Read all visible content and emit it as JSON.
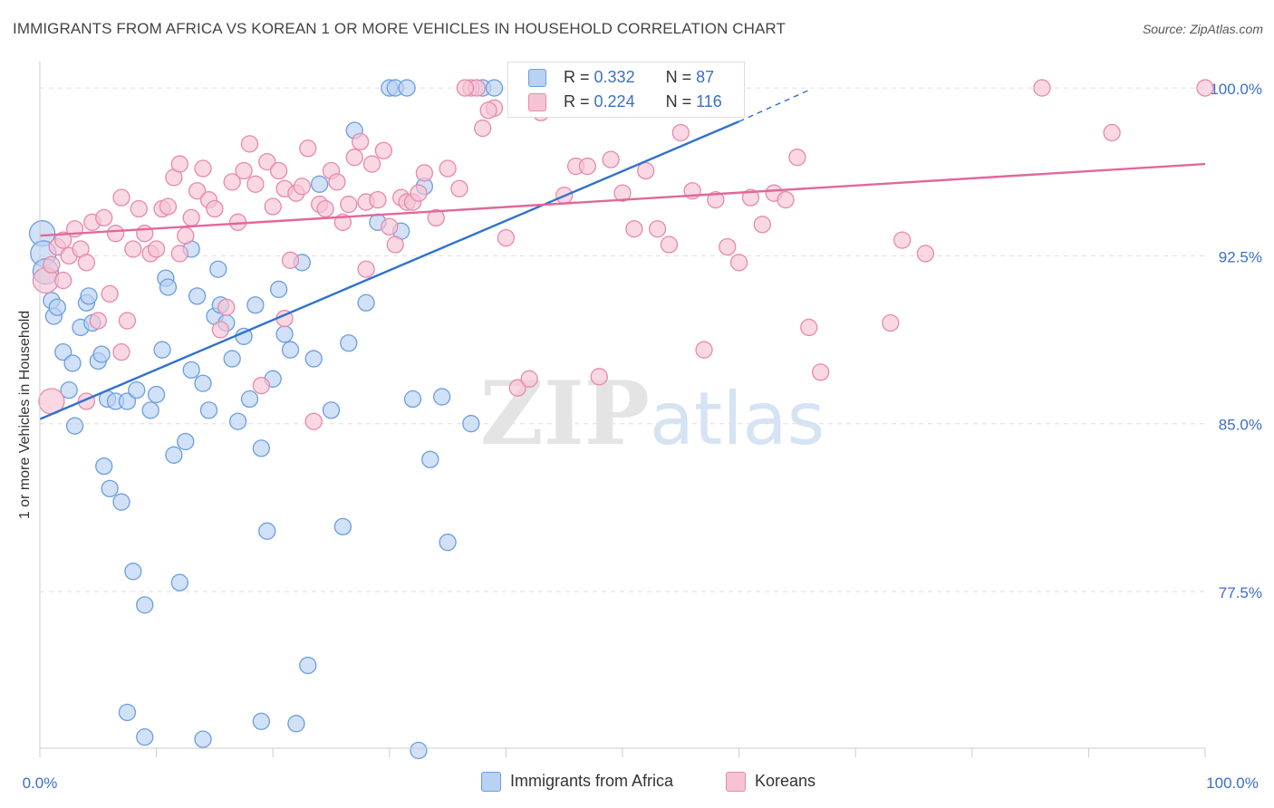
{
  "chart_data": {
    "type": "scatter",
    "title": "IMMIGRANTS FROM AFRICA VS KOREAN 1 OR MORE VEHICLES IN HOUSEHOLD CORRELATION CHART",
    "source": "Source: ZipAtlas.com",
    "ylabel": "1 or more Vehicles in Household",
    "xlim": [
      0,
      100
    ],
    "ylim": [
      70.5,
      101.5
    ],
    "x_tick_labels": [
      "0.0%",
      "100.0%"
    ],
    "y_ticks": [
      {
        "value": 100.0,
        "label": "100.0%"
      },
      {
        "value": 92.5,
        "label": "92.5%"
      },
      {
        "value": 85.0,
        "label": "85.0%"
      },
      {
        "value": 77.5,
        "label": "77.5%"
      }
    ],
    "grid": true,
    "legend": {
      "placement": "top-center",
      "rows": [
        {
          "r_label": "R = ",
          "r_value": "0.332",
          "n_label": "N = ",
          "n_value": "87"
        },
        {
          "r_label": "R = ",
          "r_value": "0.224",
          "n_label": "N = ",
          "n_value": "116"
        }
      ]
    },
    "watermark": "ZIPatlas",
    "series": [
      {
        "name": "Immigrants from Africa",
        "color": "#6b9ee0",
        "fill": "#b9d1f2",
        "trend": {
          "x0": 0,
          "y0": 85.2,
          "x1": 60,
          "y1": 98.5,
          "dashed_to_x": 66,
          "dashed_to_y": 99.9
        },
        "points": [
          [
            0.2,
            93.5
          ],
          [
            0.3,
            92.6
          ],
          [
            0.5,
            91.8
          ],
          [
            1.0,
            90.5
          ],
          [
            1.2,
            89.8
          ],
          [
            1.5,
            90.2
          ],
          [
            2.0,
            88.2
          ],
          [
            2.5,
            86.5
          ],
          [
            2.8,
            87.7
          ],
          [
            3.0,
            84.9
          ],
          [
            3.5,
            89.3
          ],
          [
            4.0,
            90.4
          ],
          [
            4.2,
            90.7
          ],
          [
            4.5,
            89.5
          ],
          [
            5.0,
            87.8
          ],
          [
            5.3,
            88.1
          ],
          [
            5.5,
            83.1
          ],
          [
            5.8,
            86.1
          ],
          [
            6.0,
            82.1
          ],
          [
            6.5,
            86.0
          ],
          [
            7.0,
            81.5
          ],
          [
            7.5,
            86.0
          ],
          [
            8.0,
            78.4
          ],
          [
            8.3,
            86.5
          ],
          [
            9.0,
            76.9
          ],
          [
            9.5,
            85.6
          ],
          [
            10.0,
            86.3
          ],
          [
            10.5,
            88.3
          ],
          [
            10.8,
            91.5
          ],
          [
            11.0,
            91.1
          ],
          [
            11.5,
            83.6
          ],
          [
            12.0,
            77.9
          ],
          [
            12.5,
            84.2
          ],
          [
            13.0,
            87.4
          ],
          [
            13.5,
            90.7
          ],
          [
            14.0,
            86.8
          ],
          [
            14.5,
            85.6
          ],
          [
            15.0,
            89.8
          ],
          [
            15.3,
            91.9
          ],
          [
            15.5,
            90.3
          ],
          [
            16.0,
            89.5
          ],
          [
            16.5,
            87.9
          ],
          [
            17.0,
            85.1
          ],
          [
            17.5,
            88.9
          ],
          [
            18.0,
            86.1
          ],
          [
            18.5,
            90.3
          ],
          [
            19.0,
            83.9
          ],
          [
            19.5,
            80.2
          ],
          [
            20.0,
            87.0
          ],
          [
            20.5,
            91.0
          ],
          [
            21.0,
            89.0
          ],
          [
            21.5,
            88.3
          ],
          [
            22.0,
            71.6
          ],
          [
            22.5,
            92.2
          ],
          [
            23.0,
            74.2
          ],
          [
            23.5,
            87.9
          ],
          [
            24.0,
            95.7
          ],
          [
            25.0,
            85.6
          ],
          [
            26.0,
            80.4
          ],
          [
            26.5,
            88.6
          ],
          [
            27.0,
            98.1
          ],
          [
            28.0,
            90.4
          ],
          [
            29.0,
            94.0
          ],
          [
            30.0,
            100.0
          ],
          [
            30.5,
            100.0
          ],
          [
            31.0,
            93.6
          ],
          [
            31.5,
            100.0
          ],
          [
            32.0,
            86.1
          ],
          [
            32.5,
            70.4
          ],
          [
            33.0,
            95.6
          ],
          [
            33.5,
            83.4
          ],
          [
            34.5,
            86.2
          ],
          [
            35.0,
            79.7
          ],
          [
            37.0,
            85.0
          ],
          [
            38.0,
            100.0
          ],
          [
            39.0,
            100.0
          ],
          [
            42.0,
            100.0
          ],
          [
            43.0,
            100.0
          ],
          [
            44.0,
            100.0
          ],
          [
            45.0,
            100.0
          ],
          [
            47.0,
            100.0
          ],
          [
            48.0,
            100.0
          ],
          [
            9.0,
            71.0
          ],
          [
            14.0,
            70.9
          ],
          [
            7.5,
            72.1
          ],
          [
            19.0,
            71.7
          ],
          [
            13.0,
            92.8
          ]
        ]
      },
      {
        "name": "Koreans",
        "color": "#e889a8",
        "fill": "#f6c3d4",
        "trend": {
          "x0": 0,
          "y0": 93.4,
          "x1": 100,
          "y1": 96.6
        },
        "points": [
          [
            0.5,
            91.4
          ],
          [
            1.0,
            86.0
          ],
          [
            1.5,
            92.9
          ],
          [
            2.0,
            93.2
          ],
          [
            2.5,
            92.5
          ],
          [
            3.0,
            93.7
          ],
          [
            3.5,
            92.8
          ],
          [
            4.0,
            92.2
          ],
          [
            4.5,
            94.0
          ],
          [
            5.0,
            89.6
          ],
          [
            5.5,
            94.2
          ],
          [
            6.0,
            90.8
          ],
          [
            6.5,
            93.5
          ],
          [
            7.0,
            95.1
          ],
          [
            7.5,
            89.6
          ],
          [
            8.0,
            92.8
          ],
          [
            8.5,
            94.6
          ],
          [
            9.0,
            93.5
          ],
          [
            9.5,
            92.6
          ],
          [
            10.0,
            92.8
          ],
          [
            10.5,
            94.6
          ],
          [
            11.0,
            94.7
          ],
          [
            11.5,
            96.0
          ],
          [
            12.0,
            96.6
          ],
          [
            12.5,
            93.4
          ],
          [
            13.0,
            94.2
          ],
          [
            13.5,
            95.4
          ],
          [
            14.0,
            96.4
          ],
          [
            14.5,
            95.0
          ],
          [
            15.0,
            94.6
          ],
          [
            15.5,
            89.2
          ],
          [
            16.0,
            90.2
          ],
          [
            16.5,
            95.8
          ],
          [
            17.0,
            94.0
          ],
          [
            17.5,
            96.3
          ],
          [
            18.0,
            97.5
          ],
          [
            18.5,
            95.7
          ],
          [
            19.0,
            86.7
          ],
          [
            19.5,
            96.7
          ],
          [
            20.0,
            94.7
          ],
          [
            20.5,
            96.3
          ],
          [
            21.0,
            95.5
          ],
          [
            21.5,
            92.3
          ],
          [
            22.0,
            95.3
          ],
          [
            22.5,
            95.6
          ],
          [
            23.0,
            97.3
          ],
          [
            23.5,
            85.1
          ],
          [
            24.0,
            94.8
          ],
          [
            24.5,
            94.6
          ],
          [
            25.0,
            96.3
          ],
          [
            25.5,
            95.8
          ],
          [
            26.0,
            94.0
          ],
          [
            26.5,
            94.8
          ],
          [
            27.0,
            96.9
          ],
          [
            27.5,
            97.6
          ],
          [
            28.0,
            94.9
          ],
          [
            28.5,
            96.6
          ],
          [
            29.0,
            95.0
          ],
          [
            29.5,
            97.2
          ],
          [
            30.0,
            93.8
          ],
          [
            30.5,
            93.0
          ],
          [
            31.0,
            95.1
          ],
          [
            31.5,
            94.9
          ],
          [
            32.0,
            94.9
          ],
          [
            32.5,
            95.3
          ],
          [
            33.0,
            96.2
          ],
          [
            34.0,
            94.2
          ],
          [
            35.0,
            96.4
          ],
          [
            36.0,
            95.5
          ],
          [
            37.0,
            100.0
          ],
          [
            38.0,
            98.2
          ],
          [
            39.0,
            99.1
          ],
          [
            40.0,
            93.3
          ],
          [
            41.0,
            86.6
          ],
          [
            42.0,
            87.0
          ],
          [
            43.0,
            98.9
          ],
          [
            44.0,
            99.2
          ],
          [
            45.0,
            95.2
          ],
          [
            46.0,
            96.5
          ],
          [
            47.0,
            96.5
          ],
          [
            48.0,
            87.1
          ],
          [
            49.0,
            96.8
          ],
          [
            50.0,
            95.3
          ],
          [
            51.0,
            93.7
          ],
          [
            52.0,
            96.3
          ],
          [
            53.0,
            93.7
          ],
          [
            54.0,
            93.0
          ],
          [
            55.0,
            98.0
          ],
          [
            56.0,
            95.4
          ],
          [
            57.0,
            88.3
          ],
          [
            58.0,
            95.0
          ],
          [
            59.0,
            92.9
          ],
          [
            60.0,
            92.2
          ],
          [
            61.0,
            95.1
          ],
          [
            62.0,
            93.9
          ],
          [
            63.0,
            95.3
          ],
          [
            64.0,
            95.0
          ],
          [
            65.0,
            96.9
          ],
          [
            66.0,
            89.3
          ],
          [
            67.0,
            87.3
          ],
          [
            73.0,
            89.5
          ],
          [
            74.0,
            93.2
          ],
          [
            76.0,
            92.6
          ],
          [
            86.0,
            100.0
          ],
          [
            92.0,
            98.0
          ],
          [
            100.0,
            100.0
          ],
          [
            37.5,
            100.0
          ],
          [
            36.5,
            100.0
          ],
          [
            38.5,
            99.0
          ],
          [
            4.0,
            86.0
          ],
          [
            2.0,
            91.4
          ],
          [
            1.0,
            92.1
          ],
          [
            7.0,
            88.2
          ],
          [
            12.0,
            92.6
          ],
          [
            21.0,
            89.7
          ],
          [
            28.0,
            91.9
          ]
        ]
      }
    ],
    "bottom_legend": [
      "Immigrants from Africa",
      "Koreans"
    ]
  }
}
